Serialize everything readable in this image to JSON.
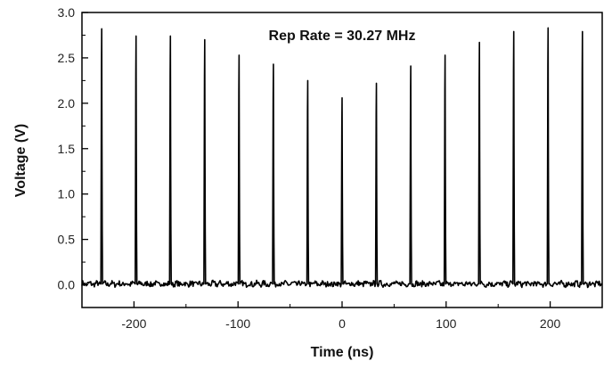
{
  "chart_data": {
    "type": "line",
    "title": "",
    "xlabel": "Time (ns)",
    "ylabel": "Voltage (V)",
    "xlim": [
      -250,
      250
    ],
    "ylim": [
      -0.25,
      3.0
    ],
    "xticks": [
      -200,
      -100,
      0,
      100,
      200
    ],
    "xtick_labels": [
      "-200",
      "-100",
      "0",
      "100",
      "200"
    ],
    "yticks": [
      0.0,
      0.5,
      1.0,
      1.5,
      2.0,
      2.5,
      3.0
    ],
    "ytick_labels": [
      "0.0",
      "0.5",
      "1.0",
      "1.5",
      "2.0",
      "2.5",
      "3.0"
    ],
    "annotation": "Rep Rate = 30.27 MHz",
    "grid": false,
    "line_color": "#000000",
    "baseline_v": 0.01,
    "pulse_width_ns": 1.6,
    "series": [
      {
        "pulses": [
          {
            "t": -231.0,
            "peak": 2.82
          },
          {
            "t": -198.0,
            "peak": 2.74
          },
          {
            "t": -165.0,
            "peak": 2.74
          },
          {
            "t": -132.0,
            "peak": 2.7
          },
          {
            "t": -99.0,
            "peak": 2.53
          },
          {
            "t": -66.0,
            "peak": 2.43
          },
          {
            "t": -33.0,
            "peak": 2.25
          },
          {
            "t": 0.0,
            "peak": 2.06
          },
          {
            "t": 33.0,
            "peak": 2.22
          },
          {
            "t": 66.0,
            "peak": 2.41
          },
          {
            "t": 99.0,
            "peak": 2.53
          },
          {
            "t": 132.0,
            "peak": 2.67
          },
          {
            "t": 165.0,
            "peak": 2.79
          },
          {
            "t": 198.0,
            "peak": 2.83
          },
          {
            "t": 231.0,
            "peak": 2.79
          }
        ]
      }
    ]
  }
}
